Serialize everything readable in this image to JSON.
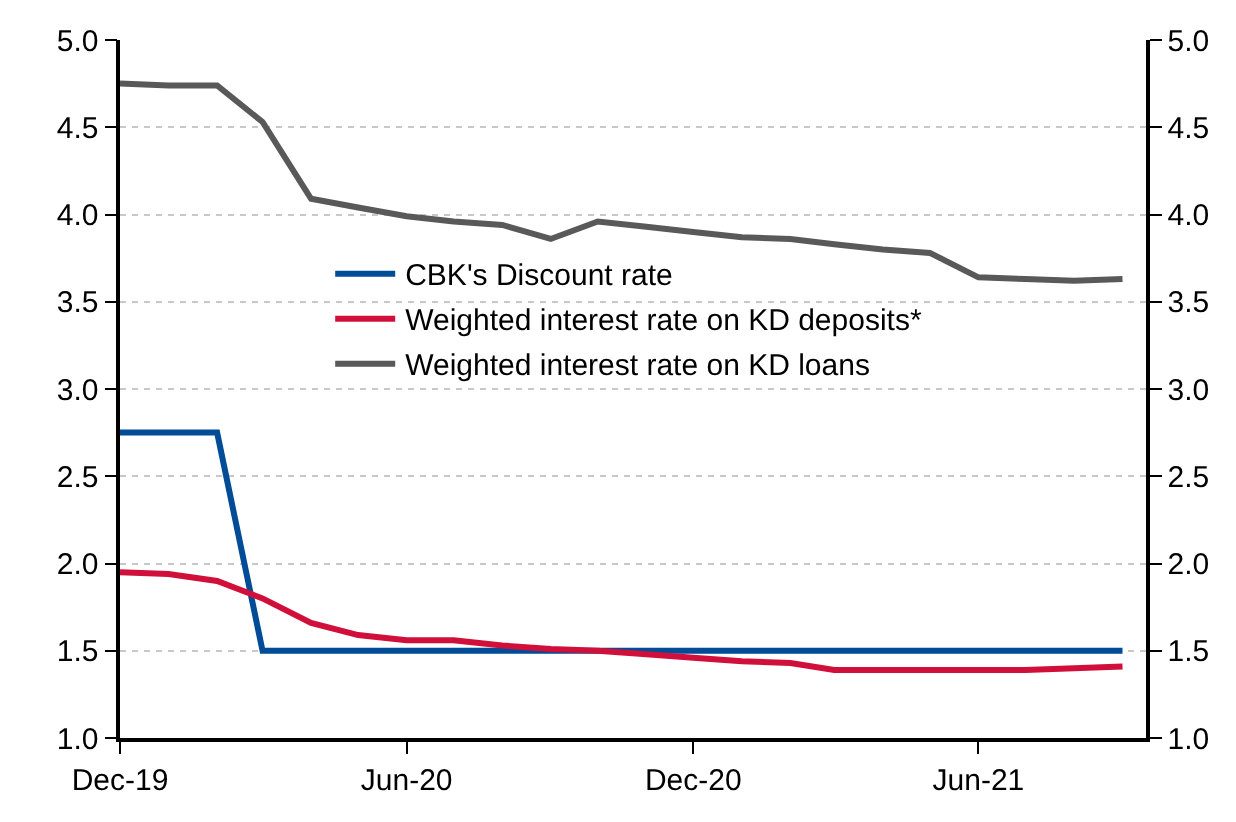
{
  "chart_data": {
    "type": "line",
    "x": [
      "2019-12",
      "2020-01",
      "2020-02",
      "2020-03",
      "2020-04",
      "2020-05",
      "2020-06",
      "2020-07",
      "2020-08",
      "2020-09",
      "2020-10",
      "2020-11",
      "2020-12",
      "2021-01",
      "2021-02",
      "2021-03",
      "2021-04",
      "2021-05",
      "2021-06",
      "2021-07",
      "2021-08",
      "2021-09"
    ],
    "series": [
      {
        "name": "CBK's Discount rate",
        "color": "#004c97",
        "values": [
          2.75,
          2.75,
          2.75,
          1.5,
          1.5,
          1.5,
          1.5,
          1.5,
          1.5,
          1.5,
          1.5,
          1.5,
          1.5,
          1.5,
          1.5,
          1.5,
          1.5,
          1.5,
          1.5,
          1.5,
          1.5,
          1.5
        ]
      },
      {
        "name": "Weighted interest rate on KD deposits*",
        "color": "#d0103a",
        "values": [
          1.95,
          1.94,
          1.9,
          1.8,
          1.66,
          1.59,
          1.56,
          1.56,
          1.53,
          1.51,
          1.5,
          1.48,
          1.46,
          1.44,
          1.43,
          1.39,
          1.39,
          1.39,
          1.39,
          1.39,
          1.4,
          1.41
        ]
      },
      {
        "name": "Weighted interest rate on KD loans",
        "color": "#595959",
        "values": [
          4.75,
          4.74,
          4.74,
          4.53,
          4.09,
          4.04,
          3.99,
          3.96,
          3.94,
          3.86,
          3.96,
          3.93,
          3.9,
          3.87,
          3.86,
          3.83,
          3.8,
          3.78,
          3.64,
          3.63,
          3.62,
          3.63
        ]
      }
    ],
    "xlim": [
      "2019-12-01",
      "2021-09-16"
    ],
    "xticks": [
      {
        "value": "2019-12",
        "label": "Dec-19"
      },
      {
        "value": "2020-06",
        "label": "Jun-20"
      },
      {
        "value": "2020-12",
        "label": "Dec-20"
      },
      {
        "value": "2021-06",
        "label": "Jun-21"
      }
    ],
    "ylim": [
      1.0,
      5.0
    ],
    "yticks": [
      {
        "value": 1.0,
        "label": "1.0"
      },
      {
        "value": 1.5,
        "label": "1.5"
      },
      {
        "value": 2.0,
        "label": "2.0"
      },
      {
        "value": 2.5,
        "label": "2.5"
      },
      {
        "value": 3.0,
        "label": "3.0"
      },
      {
        "value": 3.5,
        "label": "3.5"
      },
      {
        "value": 4.0,
        "label": "4.0"
      },
      {
        "value": 4.5,
        "label": "4.5"
      },
      {
        "value": 5.0,
        "label": "5.0"
      }
    ],
    "y2lim": [
      1.0,
      5.0
    ],
    "y2ticks": [
      {
        "value": 1.0,
        "label": "1.0"
      },
      {
        "value": 1.5,
        "label": "1.5"
      },
      {
        "value": 2.0,
        "label": "2.0"
      },
      {
        "value": 2.5,
        "label": "2.5"
      },
      {
        "value": 3.0,
        "label": "3.0"
      },
      {
        "value": 3.5,
        "label": "3.5"
      },
      {
        "value": 4.0,
        "label": "4.0"
      },
      {
        "value": 4.5,
        "label": "4.5"
      },
      {
        "value": 5.0,
        "label": "5.0"
      }
    ],
    "grid": "y",
    "legend": "left",
    "marker": "none",
    "line_style": "solid"
  }
}
